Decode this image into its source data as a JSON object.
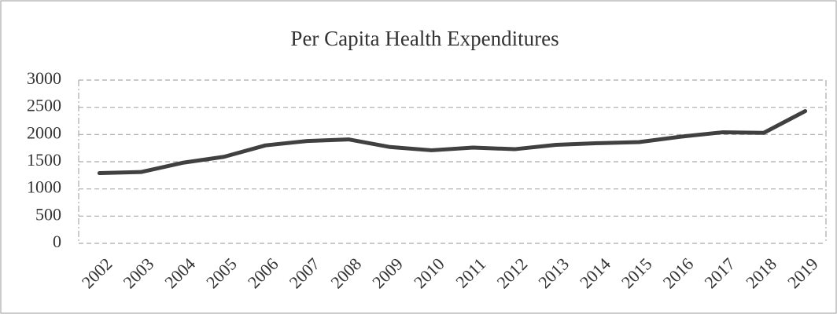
{
  "chart_data": {
    "type": "line",
    "title": "Per Capita Health Expenditures",
    "categories": [
      "2002",
      "2003",
      "2004",
      "2005",
      "2006",
      "2007",
      "2008",
      "2009",
      "2010",
      "2011",
      "2012",
      "2013",
      "2014",
      "2015",
      "2016",
      "2017",
      "2018",
      "2019"
    ],
    "series": [
      {
        "name": "Per Capita Health Expenditures",
        "color": "#404040",
        "values": [
          1290,
          1310,
          1480,
          1590,
          1800,
          1880,
          1910,
          1770,
          1710,
          1760,
          1730,
          1810,
          1840,
          1860,
          1960,
          2040,
          2030,
          2430
        ]
      }
    ],
    "ylim": [
      0,
      3000
    ],
    "yticks": [
      0,
      500,
      1000,
      1500,
      2000,
      2500,
      3000
    ],
    "grid": true
  }
}
